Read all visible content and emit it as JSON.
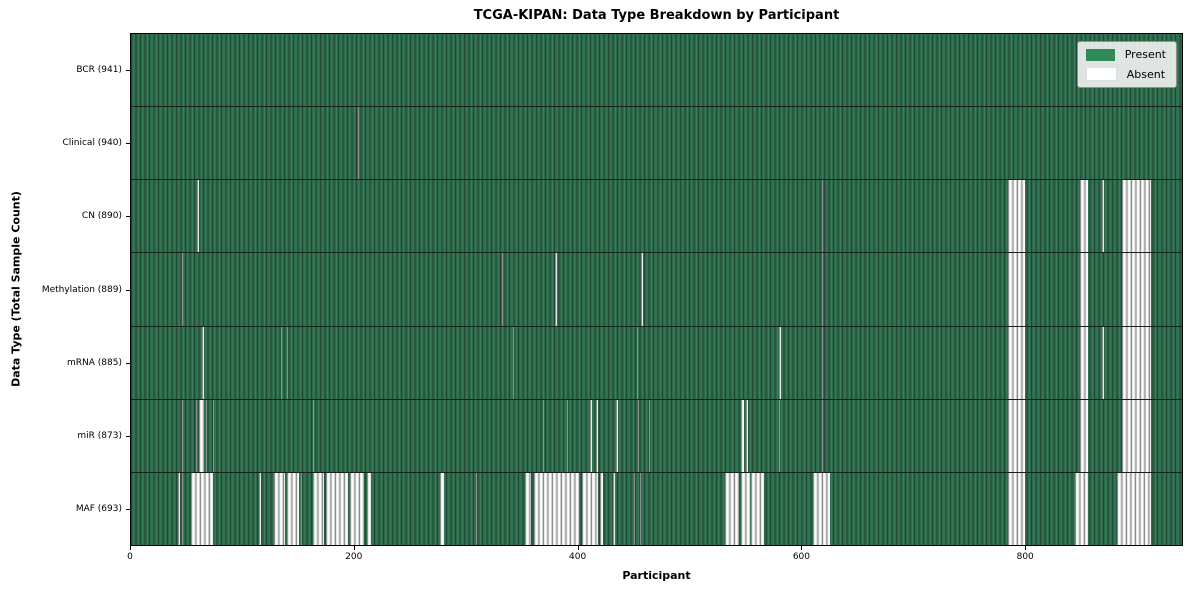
{
  "title": "TCGA-KIPAN: Data Type Breakdown by Participant",
  "xlabel": "Participant",
  "ylabel": "Data Type (Total Sample Count)",
  "legend": {
    "present_label": "Present",
    "absent_label": "Absent"
  },
  "colors": {
    "present": "#2e8b57",
    "present_mid": "#2d6a49",
    "present_dark": "#1e4936",
    "present_light": "#3a7c59",
    "absent_white": "#ffffff",
    "absent_gray": "#8f8f8f",
    "legend_bg": "#eff1ef"
  },
  "chart_data": {
    "type": "heatmap",
    "title": "TCGA-KIPAN: Data Type Breakdown by Participant",
    "xlabel": "Participant",
    "ylabel": "Data Type (Total Sample Count)",
    "legend": [
      "Present",
      "Absent"
    ],
    "legend_position": "upper right",
    "x_range": [
      0,
      941
    ],
    "x_ticks": [
      0,
      200,
      400,
      600,
      800
    ],
    "cell_states": [
      "present",
      "absent"
    ],
    "rows": [
      {
        "name": "bcr",
        "label": "BCR (941)",
        "data_type": "BCR",
        "total_sample_count": 941,
        "absent_ranges": []
      },
      {
        "name": "clinical",
        "label": "Clinical (940)",
        "data_type": "Clinical",
        "total_sample_count": 940,
        "absent_ranges": [
          [
            203,
            203
          ]
        ]
      },
      {
        "name": "cn",
        "label": "CN (890)",
        "data_type": "CN",
        "total_sample_count": 890,
        "absent_ranges": [
          [
            59,
            60
          ],
          [
            619,
            619
          ],
          [
            785,
            799
          ],
          [
            850,
            856
          ],
          [
            869,
            870
          ],
          [
            887,
            912
          ]
        ]
      },
      {
        "name": "methylation",
        "label": "Methylation (889)",
        "data_type": "Methylation",
        "total_sample_count": 889,
        "absent_ranges": [
          [
            46,
            46
          ],
          [
            332,
            332
          ],
          [
            380,
            380
          ],
          [
            457,
            457
          ],
          [
            619,
            619
          ],
          [
            785,
            799
          ],
          [
            850,
            856
          ],
          [
            887,
            912
          ]
        ]
      },
      {
        "name": "mrna",
        "label": "mRNA (885)",
        "data_type": "mRNA",
        "total_sample_count": 885,
        "absent_ranges": [
          [
            64,
            64
          ],
          [
            134,
            134
          ],
          [
            140,
            140
          ],
          [
            342,
            342
          ],
          [
            453,
            453
          ],
          [
            580,
            581
          ],
          [
            619,
            619
          ],
          [
            785,
            799
          ],
          [
            850,
            856
          ],
          [
            869,
            870
          ],
          [
            887,
            912
          ]
        ]
      },
      {
        "name": "mir",
        "label": "miR (873)",
        "data_type": "miR",
        "total_sample_count": 873,
        "absent_ranges": [
          [
            46,
            46
          ],
          [
            58,
            58
          ],
          [
            61,
            64
          ],
          [
            67,
            67
          ],
          [
            73,
            73
          ],
          [
            163,
            163
          ],
          [
            369,
            369
          ],
          [
            390,
            390
          ],
          [
            411,
            412
          ],
          [
            416,
            417
          ],
          [
            434,
            435
          ],
          [
            454,
            454
          ],
          [
            464,
            464
          ],
          [
            546,
            548
          ],
          [
            551,
            551
          ],
          [
            580,
            580
          ],
          [
            619,
            619
          ],
          [
            785,
            799
          ],
          [
            850,
            856
          ],
          [
            887,
            912
          ]
        ]
      },
      {
        "name": "maf",
        "label": "MAF (693)",
        "data_type": "MAF",
        "total_sample_count": 693,
        "absent_ranges": [
          [
            42,
            43
          ],
          [
            46,
            46
          ],
          [
            54,
            72
          ],
          [
            115,
            115
          ],
          [
            128,
            137
          ],
          [
            140,
            149
          ],
          [
            152,
            152
          ],
          [
            163,
            172
          ],
          [
            175,
            193
          ],
          [
            196,
            208
          ],
          [
            211,
            214
          ],
          [
            277,
            279
          ],
          [
            309,
            309
          ],
          [
            353,
            357
          ],
          [
            361,
            400
          ],
          [
            404,
            417
          ],
          [
            420,
            422
          ],
          [
            432,
            432
          ],
          [
            450,
            450
          ],
          [
            456,
            456
          ],
          [
            532,
            543
          ],
          [
            546,
            553
          ],
          [
            555,
            566
          ],
          [
            611,
            625
          ],
          [
            785,
            799
          ],
          [
            845,
            856
          ],
          [
            883,
            912
          ]
        ]
      }
    ]
  }
}
